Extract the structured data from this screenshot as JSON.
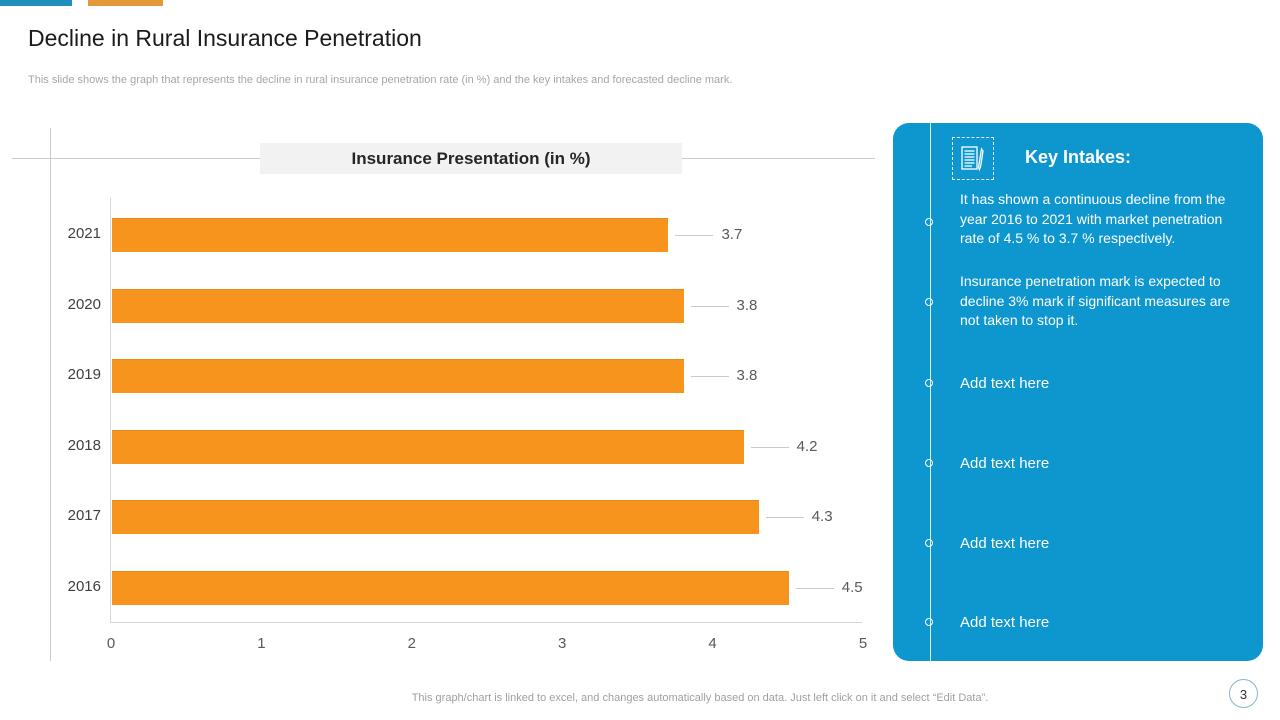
{
  "accent_bars": {
    "blue": "#1F8FBC",
    "orange": "#E49939"
  },
  "title": "Decline in Rural Insurance Penetration",
  "subtitle": "This slide shows the graph that represents the decline in rural insurance penetration rate (in %) and the key intakes and forecasted decline mark.",
  "chart_data": {
    "type": "bar",
    "orientation": "horizontal",
    "title": "Insurance Presentation (in %)",
    "categories": [
      "2021",
      "2020",
      "2019",
      "2018",
      "2017",
      "2016"
    ],
    "values": [
      3.7,
      3.8,
      3.8,
      4.2,
      4.3,
      4.5
    ],
    "data_labels": [
      "3.7",
      "3.8",
      "3.8",
      "4.2",
      "4.3",
      "4.5"
    ],
    "xlabel": "",
    "ylabel": "",
    "xlim": [
      0,
      5
    ],
    "xticks": [
      "0",
      "1",
      "2",
      "3",
      "4",
      "5"
    ],
    "grid": false,
    "legend": null,
    "bar_color": "#F7941E"
  },
  "key_intakes": {
    "heading": "Key Intakes:",
    "icon": "document-pencil-icon",
    "panel_color": "#0E97CF",
    "bullets": [
      "It has shown a continuous decline from the year 2016 to 2021 with market penetration rate of 4.5 % to 3.7 % respectively.",
      "Insurance penetration mark is expected to decline 3% mark if significant measures are not taken to stop it."
    ],
    "placeholders": [
      "Add text here",
      "Add text here",
      "Add text here",
      "Add text here"
    ]
  },
  "footer_note": "This graph/chart is linked to excel, and changes automatically based on data. Just left click on it and select “Edit Data”.",
  "page_number": "3"
}
